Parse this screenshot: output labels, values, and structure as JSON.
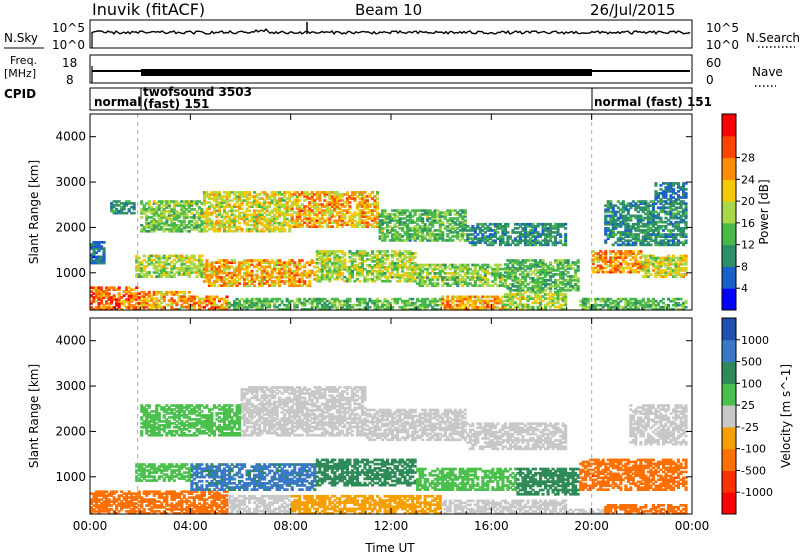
{
  "header": {
    "station": "Inuvik (fitACF)",
    "beam": "Beam 10",
    "date": "26/Jul/2015"
  },
  "panels": {
    "nsky": {
      "label": "N.Sky",
      "right_label": "N.Search",
      "ticks": [
        "10^5",
        "10^0"
      ],
      "right_ticks": [
        "10^5",
        "10^0"
      ]
    },
    "freq": {
      "label_line1": "Freq.",
      "label_line2": "[MHz]",
      "ticks": [
        "18",
        "8"
      ],
      "right_label": "Nave",
      "right_ticks": [
        "60",
        "0"
      ]
    },
    "cpid": {
      "label": "CPID",
      "segments": [
        {
          "line1": "normal",
          "line2": ""
        },
        {
          "line1": "twofsound 3503",
          "line2": "(fast) 151"
        },
        {
          "line1": "normal (fast) 151",
          "line2": ""
        }
      ]
    }
  },
  "chart_data": [
    {
      "type": "heatmap",
      "title": "",
      "xlabel": "Time UT",
      "ylabel": "Slant Range [km]",
      "x_ticks": [
        "00:00",
        "04:00",
        "08:00",
        "12:00",
        "16:00",
        "20:00",
        "00:00"
      ],
      "y_ticks": [
        "1000",
        "2000",
        "3000",
        "4000"
      ],
      "xlim_hours": [
        0,
        24
      ],
      "ylim_km": [
        180,
        4500
      ],
      "colorbar": {
        "label": "Power [dB]",
        "ticks": [
          "4",
          "8",
          "12",
          "16",
          "20",
          "24",
          "28"
        ],
        "colors": [
          "#0000ff",
          "#1a60c8",
          "#2d8f6a",
          "#48b848",
          "#a8d84a",
          "#f5c800",
          "#ff8c00",
          "#ff4500",
          "#ff0000"
        ]
      },
      "regions": [
        {
          "t0": 0.0,
          "t1": 2.0,
          "r0": 180,
          "r1": 700,
          "value": 28
        },
        {
          "t0": 2.0,
          "t1": 4.0,
          "r0": 180,
          "r1": 600,
          "value": 24
        },
        {
          "t0": 4.0,
          "t1": 5.5,
          "r0": 180,
          "r1": 500,
          "value": 26
        },
        {
          "t0": 5.5,
          "t1": 14.0,
          "r0": 180,
          "r1": 450,
          "value": 14
        },
        {
          "t0": 14.0,
          "t1": 16.5,
          "r0": 180,
          "r1": 500,
          "value": 24
        },
        {
          "t0": 16.5,
          "t1": 19.0,
          "r0": 180,
          "r1": 600,
          "value": 18
        },
        {
          "t0": 19.5,
          "t1": 23.8,
          "r0": 180,
          "r1": 450,
          "value": 14
        },
        {
          "t0": 1.8,
          "t1": 4.5,
          "r0": 900,
          "r1": 1400,
          "value": 18
        },
        {
          "t0": 4.5,
          "t1": 9.0,
          "r0": 700,
          "r1": 1300,
          "value": 24
        },
        {
          "t0": 9.0,
          "t1": 13.0,
          "r0": 800,
          "r1": 1500,
          "value": 18
        },
        {
          "t0": 13.0,
          "t1": 16.5,
          "r0": 700,
          "r1": 1200,
          "value": 16
        },
        {
          "t0": 16.5,
          "t1": 19.5,
          "r0": 600,
          "r1": 1300,
          "value": 14
        },
        {
          "t0": 20.0,
          "t1": 22.0,
          "r0": 1000,
          "r1": 1500,
          "value": 26
        },
        {
          "t0": 22.0,
          "t1": 23.8,
          "r0": 900,
          "r1": 1400,
          "value": 20
        },
        {
          "t0": 2.0,
          "t1": 4.5,
          "r0": 1900,
          "r1": 2600,
          "value": 16
        },
        {
          "t0": 4.5,
          "t1": 8.0,
          "r0": 1900,
          "r1": 2800,
          "value": 20
        },
        {
          "t0": 8.0,
          "t1": 11.5,
          "r0": 2000,
          "r1": 2800,
          "value": 24
        },
        {
          "t0": 11.5,
          "t1": 15.0,
          "r0": 1700,
          "r1": 2400,
          "value": 14
        },
        {
          "t0": 15.0,
          "t1": 19.0,
          "r0": 1600,
          "r1": 2100,
          "value": 10
        },
        {
          "t0": 20.5,
          "t1": 23.8,
          "r0": 1600,
          "r1": 2600,
          "value": 10
        },
        {
          "t0": 22.5,
          "t1": 23.8,
          "r0": 2600,
          "r1": 3000,
          "value": 8
        },
        {
          "t0": 0.0,
          "t1": 0.6,
          "r0": 1200,
          "r1": 1700,
          "value": 8
        },
        {
          "t0": 0.8,
          "t1": 1.8,
          "r0": 2300,
          "r1": 2600,
          "value": 10
        }
      ]
    },
    {
      "type": "heatmap",
      "title": "",
      "xlabel": "Time UT",
      "ylabel": "Slant Range [km]",
      "x_ticks": [
        "00:00",
        "04:00",
        "08:00",
        "12:00",
        "16:00",
        "20:00",
        "00:00"
      ],
      "y_ticks": [
        "1000",
        "2000",
        "3000",
        "4000"
      ],
      "xlim_hours": [
        0,
        24
      ],
      "ylim_km": [
        180,
        4500
      ],
      "colorbar": {
        "label": "Velocity [m s^-1]",
        "ticks": [
          "1000",
          "500",
          "100",
          "25",
          "-25",
          "-100",
          "-500",
          "-1000"
        ],
        "colors": [
          "#2050b0",
          "#3a78c8",
          "#2e8b57",
          "#4cc04c",
          "#c8c8c8",
          "#f5a000",
          "#ff7000",
          "#ff3000",
          "#ff0000"
        ]
      },
      "regions": [
        {
          "t0": 0.0,
          "t1": 5.5,
          "r0": 180,
          "r1": 700,
          "value": -200
        },
        {
          "t0": 5.5,
          "t1": 8.0,
          "r0": 180,
          "r1": 600,
          "value": 0
        },
        {
          "t0": 8.0,
          "t1": 14.0,
          "r0": 180,
          "r1": 600,
          "value": -50
        },
        {
          "t0": 14.0,
          "t1": 19.0,
          "r0": 180,
          "r1": 500,
          "value": 0
        },
        {
          "t0": 19.0,
          "t1": 20.5,
          "r0": 180,
          "r1": 300,
          "value": 0
        },
        {
          "t0": 20.5,
          "t1": 23.8,
          "r0": 180,
          "r1": 400,
          "value": -200
        },
        {
          "t0": 4.0,
          "t1": 9.0,
          "r0": 700,
          "r1": 1300,
          "value": 600
        },
        {
          "t0": 9.0,
          "t1": 13.0,
          "r0": 800,
          "r1": 1400,
          "value": 300
        },
        {
          "t0": 13.0,
          "t1": 17.0,
          "r0": 700,
          "r1": 1200,
          "value": 60
        },
        {
          "t0": 17.0,
          "t1": 19.5,
          "r0": 600,
          "r1": 1200,
          "value": 300
        },
        {
          "t0": 19.5,
          "t1": 23.8,
          "r0": 700,
          "r1": 1400,
          "value": -400
        },
        {
          "t0": 1.8,
          "t1": 4.0,
          "r0": 900,
          "r1": 1300,
          "value": 60
        },
        {
          "t0": 6.0,
          "t1": 11.0,
          "r0": 1900,
          "r1": 3000,
          "value": 0
        },
        {
          "t0": 11.0,
          "t1": 15.0,
          "r0": 1800,
          "r1": 2500,
          "value": 0
        },
        {
          "t0": 15.0,
          "t1": 19.0,
          "r0": 1600,
          "r1": 2200,
          "value": 0
        },
        {
          "t0": 2.0,
          "t1": 6.0,
          "r0": 1900,
          "r1": 2600,
          "value": 60
        },
        {
          "t0": 21.5,
          "t1": 23.8,
          "r0": 1700,
          "r1": 2600,
          "value": 0
        }
      ]
    }
  ]
}
